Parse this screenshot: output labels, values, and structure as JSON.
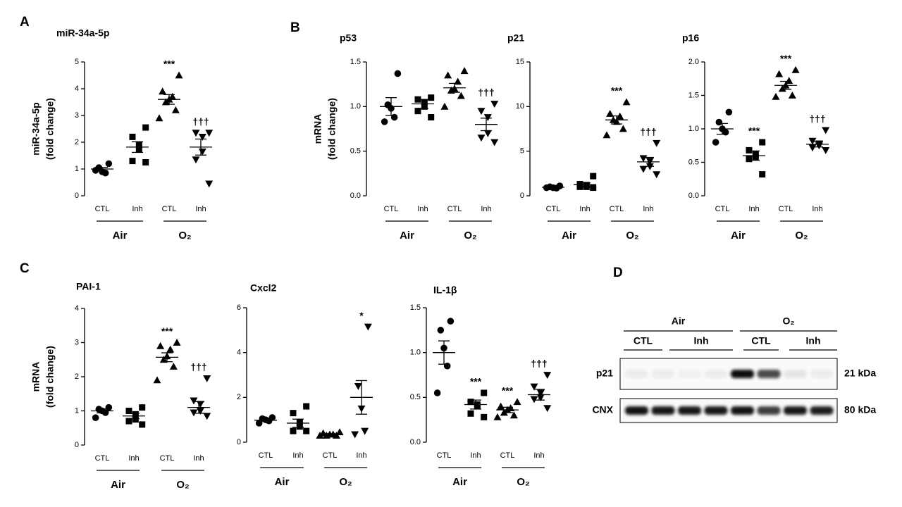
{
  "chart_data": [
    {
      "type": "dot",
      "panel": "A",
      "title": "miR-34a-5p",
      "ylabel": [
        "miR-34a-5p",
        "(fold change)"
      ],
      "categories": [
        "CTL",
        "Inh",
        "CTL",
        "Inh"
      ],
      "groups": [
        "Air",
        "O₂"
      ],
      "markers": [
        "circle",
        "square",
        "triangle-up",
        "triangle-down"
      ],
      "color": "#000000",
      "values": [
        [
          1.2,
          1.05,
          0.9,
          0.85,
          0.95
        ],
        [
          2.55,
          2.2,
          1.9,
          1.75,
          1.3,
          1.25
        ],
        [
          4.5,
          3.9,
          3.7,
          3.6,
          3.5,
          3.2,
          2.9
        ],
        [
          2.35,
          2.35,
          2.2,
          1.65,
          1.35,
          0.45
        ]
      ],
      "means": [
        1.0,
        1.82,
        3.6,
        1.82
      ],
      "sems": [
        0.06,
        0.2,
        0.18,
        0.3
      ],
      "annotations": [
        null,
        null,
        "***",
        "†††"
      ],
      "ylim": [
        0,
        5
      ],
      "yticks": [
        0,
        1,
        2,
        3,
        4,
        5
      ]
    },
    {
      "type": "dot",
      "panel": "B",
      "title": "p53",
      "ylabel": [
        "mRNA",
        "(fold change)"
      ],
      "categories": [
        "CTL",
        "Inh",
        "CTL",
        "Inh"
      ],
      "groups": [
        "Air",
        "O₂"
      ],
      "markers": [
        "circle",
        "square",
        "triangle-up",
        "triangle-down"
      ],
      "color": "#000000",
      "values": [
        [
          1.37,
          1.02,
          0.98,
          0.88,
          0.83
        ],
        [
          1.1,
          1.08,
          1.05,
          1.0,
          0.95,
          0.88
        ],
        [
          1.4,
          1.35,
          1.28,
          1.2,
          1.18,
          1.12,
          1.0
        ],
        [
          1.03,
          0.95,
          0.88,
          0.7,
          0.65,
          0.6
        ]
      ],
      "means": [
        1.0,
        1.03,
        1.21,
        0.8
      ],
      "sems": [
        0.1,
        0.05,
        0.05,
        0.07
      ],
      "annotations": [
        null,
        null,
        null,
        "†††"
      ],
      "ylim": [
        0,
        1.5
      ],
      "yticks": [
        {
          "value": 0,
          "label": "0.0"
        },
        0.5,
        {
          "value": 1,
          "label": "1.0"
        },
        1.5
      ]
    },
    {
      "type": "dot",
      "title": "p21",
      "categories": [
        "CTL",
        "Inh",
        "CTL",
        "Inh"
      ],
      "groups": [
        "Air",
        "O₂"
      ],
      "markers": [
        "circle",
        "square",
        "triangle-up",
        "triangle-down"
      ],
      "color": "#000000",
      "values": [
        [
          1.1,
          1.0,
          0.9,
          0.85,
          0.9
        ],
        [
          2.2,
          1.3,
          1.2,
          1.0,
          1.0,
          0.9
        ],
        [
          10.5,
          9.2,
          8.9,
          8.3,
          8.5,
          7.5,
          6.8
        ],
        [
          5.9,
          4.2,
          3.9,
          3.3,
          3.0,
          2.4
        ]
      ],
      "means": [
        0.95,
        1.25,
        8.5,
        3.8
      ],
      "sems": [
        0.05,
        0.2,
        0.45,
        0.5
      ],
      "annotations": [
        null,
        null,
        "***",
        "†††"
      ],
      "ylim": [
        0,
        15
      ],
      "yticks": [
        0,
        5,
        10,
        15
      ]
    },
    {
      "type": "dot",
      "title": "p16",
      "categories": [
        "CTL",
        "Inh",
        "CTL",
        "Inh"
      ],
      "groups": [
        "Air",
        "O₂"
      ],
      "markers": [
        "circle",
        "square",
        "triangle-up",
        "triangle-down"
      ],
      "color": "#000000",
      "values": [
        [
          1.25,
          1.1,
          1.0,
          0.95,
          0.8
        ],
        [
          0.8,
          0.68,
          0.62,
          0.58,
          0.55,
          0.32
        ],
        [
          1.88,
          1.82,
          1.72,
          1.65,
          1.6,
          1.5,
          1.48
        ],
        [
          0.98,
          0.82,
          0.78,
          0.75,
          0.72,
          0.68
        ]
      ],
      "means": [
        1.0,
        0.6,
        1.65,
        0.77
      ],
      "sems": [
        0.08,
        0.07,
        0.06,
        0.04
      ],
      "annotations": [
        null,
        "***",
        "***",
        "†††"
      ],
      "ylim": [
        0,
        2
      ],
      "yticks": [
        {
          "value": 0,
          "label": "0.0"
        },
        0.5,
        {
          "value": 1,
          "label": "1.0"
        },
        1.5,
        {
          "value": 2,
          "label": "2.0"
        }
      ]
    },
    {
      "type": "dot",
      "panel": "C",
      "title": "PAI-1",
      "ylabel": [
        "mRNA",
        "(fold change)"
      ],
      "categories": [
        "CTL",
        "Inh",
        "CTL",
        "Inh"
      ],
      "groups": [
        "Air",
        "O₂"
      ],
      "markers": [
        "circle",
        "square",
        "triangle-up",
        "triangle-down"
      ],
      "color": "#000000",
      "values": [
        [
          1.1,
          1.05,
          1.0,
          0.95,
          0.8
        ],
        [
          1.1,
          1.0,
          0.9,
          0.75,
          0.7,
          0.6
        ],
        [
          3.0,
          2.9,
          2.8,
          2.6,
          2.5,
          2.3,
          1.9
        ],
        [
          1.95,
          1.3,
          1.2,
          1.0,
          0.95,
          0.85
        ]
      ],
      "means": [
        1.0,
        0.85,
        2.57,
        1.1
      ],
      "sems": [
        0.06,
        0.08,
        0.13,
        0.17
      ],
      "annotations": [
        null,
        null,
        "***",
        "†††"
      ],
      "ylim": [
        0,
        4
      ],
      "yticks": [
        0,
        1,
        2,
        3,
        4
      ]
    },
    {
      "type": "dot",
      "title": "Cxcl2",
      "categories": [
        "CTL",
        "Inh",
        "CTL",
        "Inh"
      ],
      "groups": [
        "Air",
        "O₂"
      ],
      "markers": [
        "circle",
        "square",
        "triangle-up",
        "triangle-down"
      ],
      "color": "#000000",
      "values": [
        [
          1.1,
          1.05,
          1.0,
          0.95,
          0.85
        ],
        [
          1.6,
          1.3,
          0.9,
          0.7,
          0.5,
          0.5
        ],
        [
          0.45,
          0.4,
          0.35,
          0.35,
          0.3,
          0.3,
          0.3
        ],
        [
          5.15,
          2.5,
          1.5,
          0.5,
          0.35
        ]
      ],
      "means": [
        0.98,
        0.85,
        0.35,
        2.0
      ],
      "sems": [
        0.05,
        0.18,
        0.03,
        0.75
      ],
      "annotations": [
        null,
        null,
        null,
        "*"
      ],
      "ylim": [
        0,
        6
      ],
      "yticks": [
        0,
        2,
        4,
        6
      ]
    },
    {
      "type": "dot",
      "title": "IL-1β",
      "categories": [
        "CTL",
        "Inh",
        "CTL",
        "Inh"
      ],
      "groups": [
        "Air",
        "O₂"
      ],
      "markers": [
        "circle",
        "square",
        "triangle-up",
        "triangle-down"
      ],
      "color": "#000000",
      "values": [
        [
          1.35,
          1.25,
          1.05,
          0.85,
          0.55
        ],
        [
          0.55,
          0.45,
          0.42,
          0.4,
          0.32,
          0.28
        ],
        [
          0.45,
          0.4,
          0.38,
          0.36,
          0.33,
          0.3,
          0.28
        ],
        [
          0.75,
          0.62,
          0.55,
          0.5,
          0.48,
          0.38
        ]
      ],
      "means": [
        1.0,
        0.42,
        0.36,
        0.53
      ],
      "sems": [
        0.13,
        0.05,
        0.03,
        0.06
      ],
      "annotations": [
        null,
        "***",
        "***",
        "†††"
      ],
      "ylim": [
        0,
        1.5
      ],
      "yticks": [
        {
          "value": 0,
          "label": "0.0"
        },
        0.5,
        {
          "value": 1,
          "label": "1.0"
        },
        1.5
      ]
    }
  ],
  "blot": {
    "panel": "D",
    "groups": [
      "Air",
      "O₂"
    ],
    "subgroups": [
      "CTL",
      "Inh",
      "CTL",
      "Inh"
    ],
    "rows": [
      {
        "label": "p21",
        "size": "21 kDa"
      },
      {
        "label": "CNX",
        "size": "80 kDa"
      }
    ]
  }
}
